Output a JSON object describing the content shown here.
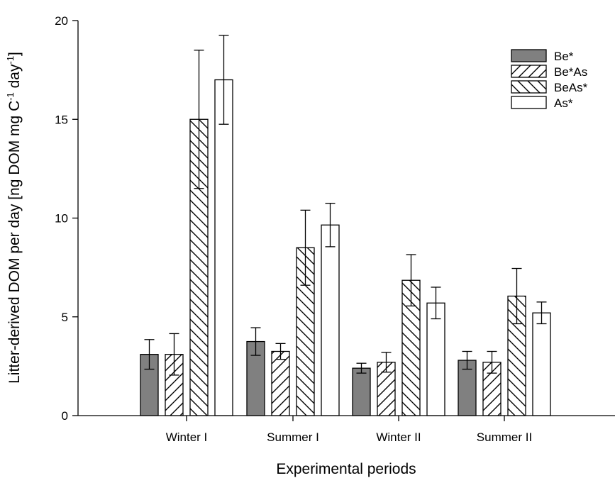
{
  "chart_data": {
    "type": "bar",
    "xlabel": "Experimental periods",
    "ylabel": "Litter-derived DOM per day [ng DOM mg C-1 day-1]",
    "ylabel_parts": {
      "main": "Litter-derived DOM per day [ng DOM mg C",
      "sup1": "-1",
      "mid": " day",
      "sup2": "-1",
      "end": "]"
    },
    "ylim": [
      0,
      20
    ],
    "yticks": [
      0,
      5,
      10,
      15,
      20
    ],
    "grid": false,
    "legend_position": "top-right",
    "categories": [
      "Winter I",
      "Summer I",
      "Winter II",
      "Summer II"
    ],
    "series": [
      {
        "name": "Be*",
        "pattern": "solid-gray",
        "color": "#808080",
        "values": [
          3.1,
          3.75,
          2.4,
          2.8
        ],
        "errors": [
          0.75,
          0.7,
          0.25,
          0.45
        ]
      },
      {
        "name": "Be*As",
        "pattern": "hatch-forward",
        "color": "#ffffff",
        "values": [
          3.1,
          3.25,
          2.7,
          2.7
        ],
        "errors": [
          1.05,
          0.4,
          0.5,
          0.55
        ]
      },
      {
        "name": "BeAs*",
        "pattern": "hatch-backward",
        "color": "#ffffff",
        "values": [
          15.0,
          8.5,
          6.85,
          6.05
        ],
        "errors": [
          3.5,
          1.9,
          1.3,
          1.4
        ]
      },
      {
        "name": "As*",
        "pattern": "white",
        "color": "#ffffff",
        "values": [
          17.0,
          9.65,
          5.7,
          5.2
        ],
        "errors": [
          2.25,
          1.1,
          0.8,
          0.55
        ]
      }
    ]
  }
}
